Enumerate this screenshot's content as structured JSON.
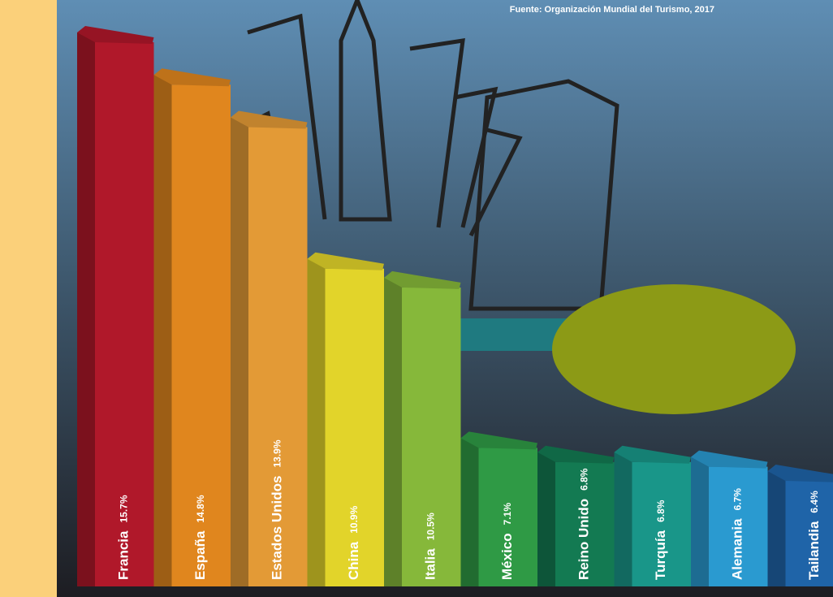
{
  "chart_data": {
    "type": "bar",
    "source": "Fuente: Organización Mundial del Turismo, 2017",
    "categories": [
      "Francia",
      "España",
      "Estados Unidos",
      "China",
      "Italia",
      "México",
      "Reino Unido",
      "Turquía",
      "Alemania",
      "Tailandia"
    ],
    "values": [
      15.7,
      14.8,
      13.9,
      10.9,
      10.5,
      7.1,
      6.8,
      6.8,
      6.7,
      6.4
    ],
    "value_labels": [
      "15.7%",
      "14.8%",
      "13.9%",
      "10.9%",
      "10.5%",
      "7.1%",
      "6.8%",
      "6.8%",
      "6.7%",
      "6.4%"
    ],
    "colors": [
      "#b0182a",
      "#e0861e",
      "#e39a36",
      "#e2d42a",
      "#86b83a",
      "#2f9a45",
      "#137a52",
      "#199689",
      "#2a9ad0",
      "#1f64a8"
    ]
  }
}
